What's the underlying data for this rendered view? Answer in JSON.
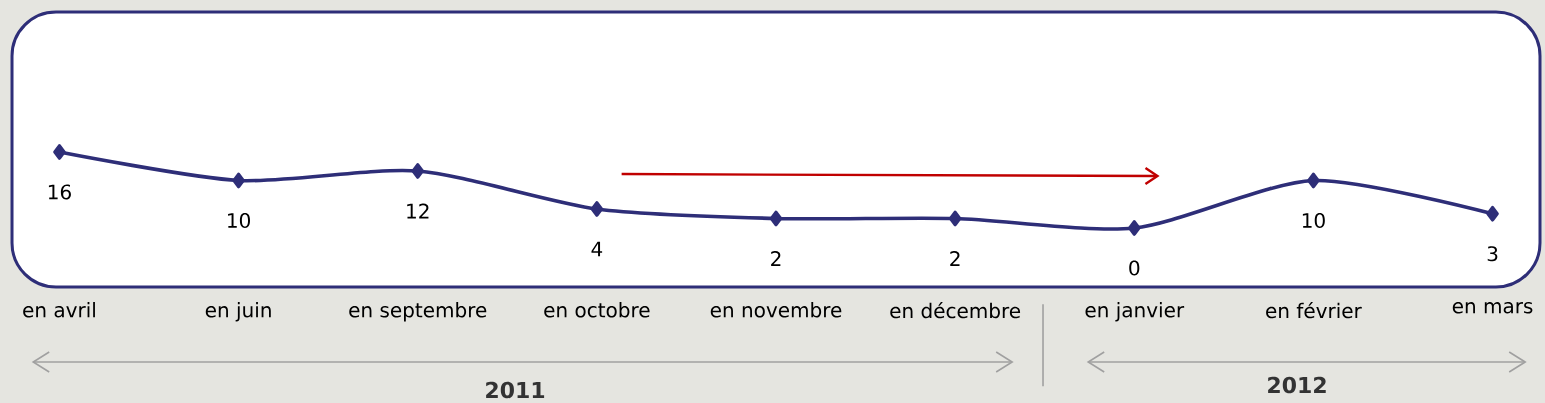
{
  "chart_data": {
    "type": "line",
    "categories": [
      "en avril",
      "en juin",
      "en septembre",
      "en octobre",
      "en novembre",
      "en décembre",
      "en janvier",
      "en février",
      "en mars"
    ],
    "values": [
      16,
      10,
      12,
      4,
      2,
      2,
      0,
      10,
      3
    ],
    "color": "#2e2e78",
    "marker": "diamond",
    "data_labels": true,
    "annotations": [
      "2011",
      "2012"
    ]
  }
}
